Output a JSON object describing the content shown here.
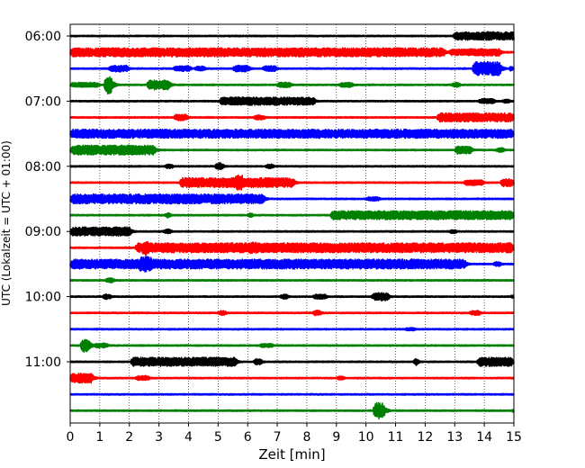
{
  "chart_data": {
    "type": "line",
    "title": "",
    "xlabel": "Zeit  [min]",
    "ylabel": "UTC (Lokalzeit = UTC + 01:00)",
    "xlim": [
      0,
      15
    ],
    "x_ticks": [
      0,
      1,
      2,
      3,
      4,
      5,
      6,
      7,
      8,
      9,
      10,
      11,
      12,
      13,
      14,
      15
    ],
    "x_tick_labels": [
      "0",
      "1",
      "2",
      "3",
      "4",
      "5",
      "6",
      "7",
      "8",
      "9",
      "10",
      "11",
      "12",
      "13",
      "14",
      "15"
    ],
    "y_tick_labels": [
      "06:00",
      "07:00",
      "08:00",
      "09:00",
      "10:00",
      "11:00"
    ],
    "grid": "vertical dotted",
    "trace_interval_min": 15,
    "trace_colors": [
      "#000000",
      "#ff0000",
      "#0000ff",
      "#008000"
    ],
    "traces": [
      {
        "start": "06:00",
        "bursts": [
          [
            12.95,
            15,
            0.5
          ],
          [
            13.9,
            0.5,
            0.55
          ]
        ]
      },
      {
        "start": "06:15",
        "bursts": [
          [
            0,
            12.7,
            0.55
          ],
          [
            12.8,
            0.9,
            0.4
          ],
          [
            13.4,
            1.2,
            0.45
          ]
        ]
      },
      {
        "start": "06:30",
        "bursts": [
          [
            1.3,
            0.7,
            0.4
          ],
          [
            3.5,
            0.6,
            0.35
          ],
          [
            4.2,
            0.4,
            0.3
          ],
          [
            5.5,
            0.6,
            0.4
          ],
          [
            6.5,
            0.5,
            0.35
          ],
          [
            13.6,
            1.0,
            0.85
          ],
          [
            14.85,
            0.1,
            0.5
          ]
        ]
      },
      {
        "start": "06:45",
        "bursts": [
          [
            0,
            1.0,
            0.3
          ],
          [
            1.15,
            0.3,
            1.1
          ],
          [
            2.6,
            0.8,
            0.6
          ],
          [
            7.0,
            0.5,
            0.35
          ],
          [
            9.1,
            0.5,
            0.3
          ],
          [
            12.9,
            0.3,
            0.3
          ]
        ]
      },
      {
        "start": "07:00",
        "bursts": [
          [
            5.05,
            3.25,
            0.5
          ],
          [
            13.8,
            0.6,
            0.3
          ],
          [
            14.6,
            0.3,
            0.25
          ]
        ]
      },
      {
        "start": "07:15",
        "bursts": [
          [
            3.5,
            0.5,
            0.4
          ],
          [
            6.2,
            0.4,
            0.3
          ],
          [
            12.4,
            2.6,
            0.55
          ]
        ]
      },
      {
        "start": "07:30",
        "bursts": [
          [
            0,
            15,
            0.55
          ],
          [
            6.5,
            2.0,
            0.2
          ]
        ]
      },
      {
        "start": "07:45",
        "bursts": [
          [
            0,
            2.9,
            0.6
          ],
          [
            13.0,
            0.6,
            0.5
          ],
          [
            14.4,
            0.3,
            0.3
          ]
        ]
      },
      {
        "start": "08:00",
        "bursts": [
          [
            3.2,
            0.3,
            0.3
          ],
          [
            4.9,
            0.3,
            0.45
          ],
          [
            6.6,
            0.3,
            0.3
          ]
        ]
      },
      {
        "start": "08:15",
        "bursts": [
          [
            3.7,
            3.9,
            0.6
          ],
          [
            5.55,
            0.35,
            1.0
          ],
          [
            13.3,
            0.7,
            0.35
          ],
          [
            14.55,
            0.45,
            0.5
          ]
        ]
      },
      {
        "start": "08:30",
        "bursts": [
          [
            0,
            6.6,
            0.6
          ],
          [
            10.0,
            0.5,
            0.25
          ]
        ]
      },
      {
        "start": "08:45",
        "bursts": [
          [
            3.2,
            0.2,
            0.35
          ],
          [
            8.8,
            6.2,
            0.55
          ],
          [
            6.0,
            0.2,
            0.3
          ]
        ]
      },
      {
        "start": "09:00",
        "bursts": [
          [
            0,
            2.1,
            0.55
          ],
          [
            3.15,
            0.3,
            0.3
          ],
          [
            12.8,
            0.3,
            0.25
          ]
        ]
      },
      {
        "start": "09:15",
        "bursts": [
          [
            2.2,
            12.8,
            0.6
          ],
          [
            2.4,
            0.3,
            0.9
          ],
          [
            6.0,
            0.4,
            0.7
          ]
        ]
      },
      {
        "start": "09:30",
        "bursts": [
          [
            0,
            13.4,
            0.6
          ],
          [
            2.3,
            0.5,
            1.0
          ],
          [
            14.3,
            0.3,
            0.3
          ]
        ]
      },
      {
        "start": "09:45",
        "bursts": [
          [
            1.2,
            0.3,
            0.3
          ]
        ]
      },
      {
        "start": "10:00",
        "bursts": [
          [
            1.1,
            0.3,
            0.35
          ],
          [
            7.1,
            0.3,
            0.3
          ],
          [
            8.2,
            0.5,
            0.3
          ],
          [
            10.2,
            0.6,
            0.5
          ],
          [
            14.9,
            0.1,
            0.35
          ]
        ]
      },
      {
        "start": "10:15",
        "bursts": [
          [
            5.0,
            0.3,
            0.3
          ],
          [
            8.2,
            0.3,
            0.35
          ],
          [
            13.5,
            0.4,
            0.3
          ]
        ]
      },
      {
        "start": "10:30",
        "bursts": [
          [
            11.3,
            0.4,
            0.2
          ]
        ]
      },
      {
        "start": "10:45",
        "bursts": [
          [
            0.35,
            0.35,
            0.8
          ],
          [
            0.8,
            0.5,
            0.3
          ],
          [
            6.4,
            0.5,
            0.25
          ]
        ]
      },
      {
        "start": "11:00",
        "bursts": [
          [
            2.05,
            3.6,
            0.55
          ],
          [
            6.2,
            0.3,
            0.4
          ],
          [
            13.75,
            1.25,
            0.55
          ],
          [
            11.6,
            0.2,
            0.45
          ]
        ]
      },
      {
        "start": "11:15",
        "bursts": [
          [
            0,
            0.8,
            0.6
          ],
          [
            2.2,
            0.5,
            0.3
          ],
          [
            9.0,
            0.3,
            0.25
          ]
        ]
      },
      {
        "start": "11:30",
        "bursts": []
      },
      {
        "start": "11:45",
        "bursts": [
          [
            10.25,
            0.4,
            1.0
          ],
          [
            14.95,
            0.05,
            0.35
          ]
        ]
      }
    ]
  }
}
